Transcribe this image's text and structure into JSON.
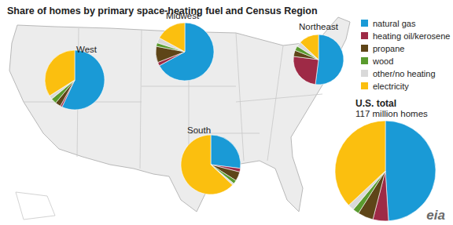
{
  "chart_data": {
    "type": "pie",
    "title": "Share of homes by primary space-heating fuel and Census Region",
    "categories": [
      "natural gas",
      "heating oil/kerosene",
      "propane",
      "wood",
      "other/no heating",
      "electricity"
    ],
    "colors": [
      "#1a9ad6",
      "#9e2a46",
      "#5e4518",
      "#5a9b2e",
      "#d9d9d9",
      "#fbbf0f"
    ],
    "pies": [
      {
        "name": "West",
        "values": [
          57,
          1,
          3,
          3,
          2,
          34
        ]
      },
      {
        "name": "Midwest",
        "values": [
          67,
          2,
          9,
          2,
          3,
          17
        ]
      },
      {
        "name": "Northeast",
        "values": [
          52,
          25,
          4,
          3,
          3,
          13
        ]
      },
      {
        "name": "South",
        "values": [
          27,
          2,
          5,
          2,
          1,
          63
        ]
      },
      {
        "name": "U.S. total",
        "subtitle": "117 million homes",
        "values": [
          49,
          5,
          5,
          2,
          2,
          37
        ]
      }
    ],
    "legend": "top-right",
    "data_labels": false,
    "source": "eia"
  }
}
